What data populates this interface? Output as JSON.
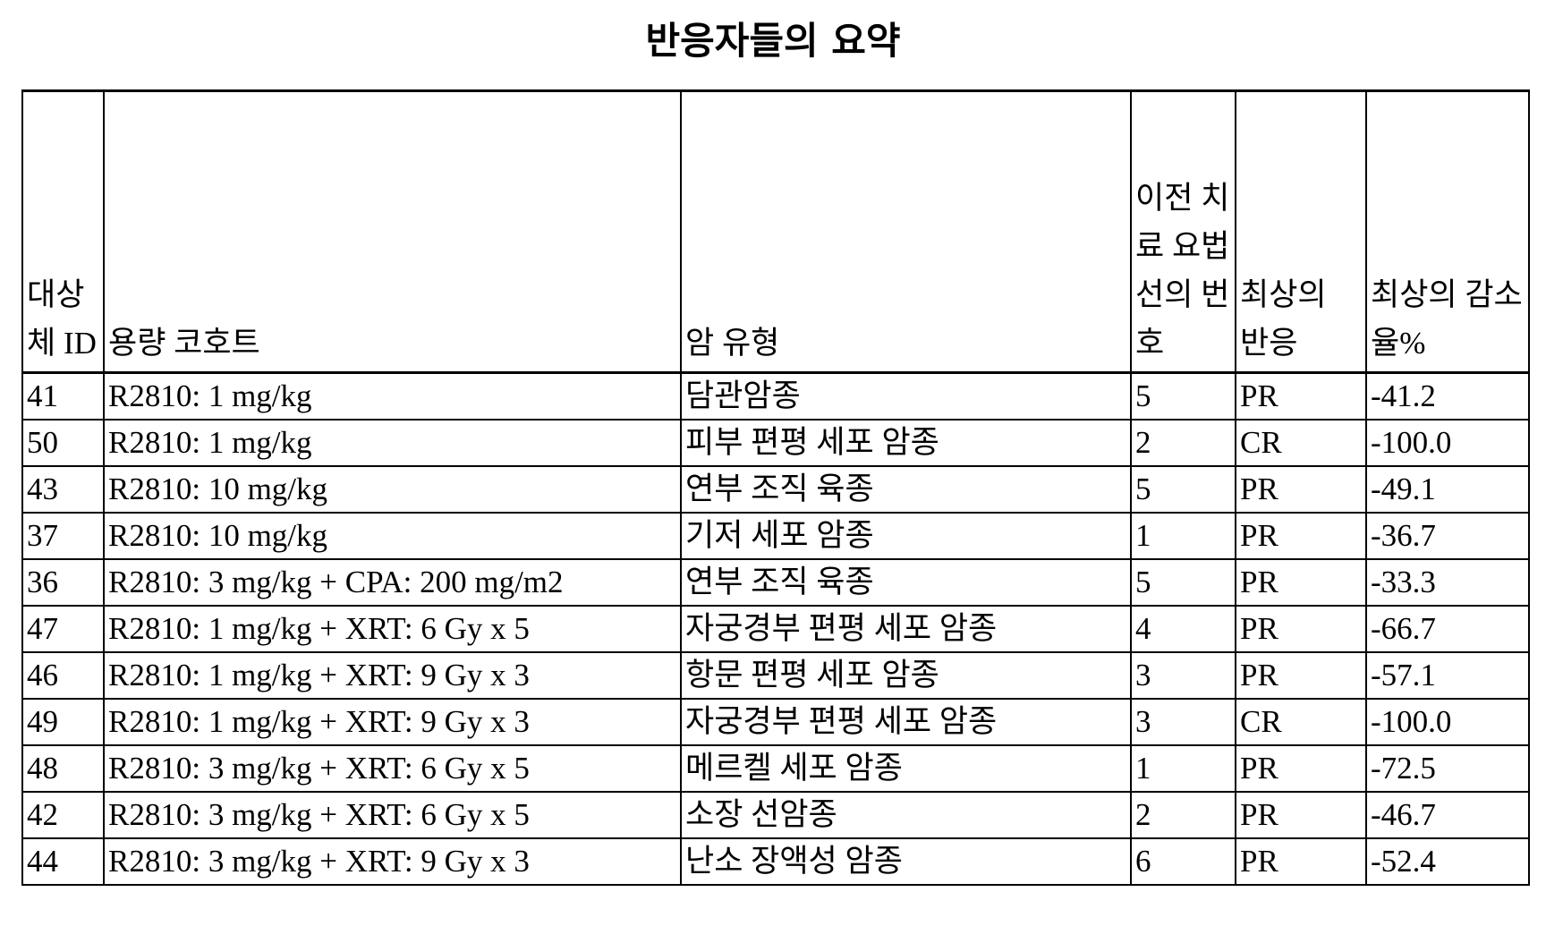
{
  "title": "반응자들의 요약",
  "table": {
    "headers": [
      "대상체 ID",
      "용량 코호트",
      "암 유형",
      "이전 치료 요법 선의 번호",
      "최상의 반응",
      "최상의 감소율%"
    ],
    "rows": [
      [
        "41",
        "R2810: 1 mg/kg",
        "담관암종",
        "5",
        "PR",
        "-41.2"
      ],
      [
        "50",
        "R2810: 1 mg/kg",
        "피부 편평 세포 암종",
        "2",
        "CR",
        "-100.0"
      ],
      [
        "43",
        "R2810: 10 mg/kg",
        "연부 조직 육종",
        "5",
        "PR",
        "-49.1"
      ],
      [
        "37",
        "R2810: 10 mg/kg",
        "기저 세포 암종",
        "1",
        "PR",
        "-36.7"
      ],
      [
        "36",
        "R2810: 3 mg/kg + CPA: 200 mg/m2",
        "연부 조직 육종",
        "5",
        "PR",
        "-33.3"
      ],
      [
        "47",
        "R2810: 1 mg/kg + XRT: 6 Gy x 5",
        "자궁경부 편평 세포 암종",
        "4",
        "PR",
        "-66.7"
      ],
      [
        "46",
        "R2810: 1 mg/kg + XRT: 9 Gy x 3",
        "항문 편평 세포 암종",
        "3",
        "PR",
        "-57.1"
      ],
      [
        "49",
        "R2810: 1 mg/kg + XRT: 9 Gy x 3",
        "자궁경부 편평 세포 암종",
        "3",
        "CR",
        "-100.0"
      ],
      [
        "48",
        "R2810: 3 mg/kg + XRT: 6 Gy x 5",
        "메르켈 세포 암종",
        "1",
        "PR",
        "-72.5"
      ],
      [
        "42",
        "R2810: 3 mg/kg + XRT: 6 Gy x 5",
        "소장 선암종",
        "2",
        "PR",
        "-46.7"
      ],
      [
        "44",
        "R2810: 3 mg/kg + XRT: 9 Gy x 3",
        "난소 장액성 암종",
        "6",
        "PR",
        "-52.4"
      ]
    ]
  }
}
